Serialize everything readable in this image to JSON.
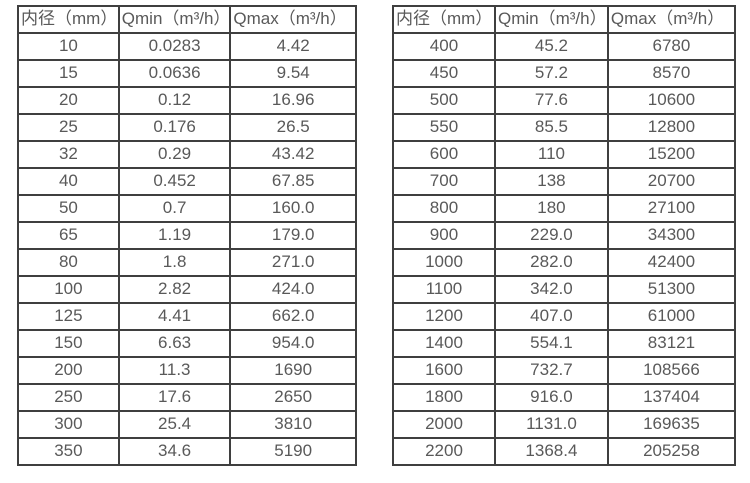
{
  "page": {
    "background_color": "#ffffff",
    "text_color": "#595959",
    "border_color": "#3f3f3f"
  },
  "tables": [
    {
      "name": "flow-rate-table-small-diameters",
      "headers": [
        "内径（mm）",
        "Qmin（m³/h）",
        "Qmax（m³/h）"
      ],
      "rows": [
        [
          "10",
          "0.0283",
          "4.42"
        ],
        [
          "15",
          "0.0636",
          "9.54"
        ],
        [
          "20",
          "0.12",
          "16.96"
        ],
        [
          "25",
          "0.176",
          "26.5"
        ],
        [
          "32",
          "0.29",
          "43.42"
        ],
        [
          "40",
          "0.452",
          "67.85"
        ],
        [
          "50",
          "0.7",
          "160.0"
        ],
        [
          "65",
          "1.19",
          "179.0"
        ],
        [
          "80",
          "1.8",
          "271.0"
        ],
        [
          "100",
          "2.82",
          "424.0"
        ],
        [
          "125",
          "4.41",
          "662.0"
        ],
        [
          "150",
          "6.63",
          "954.0"
        ],
        [
          "200",
          "11.3",
          "1690"
        ],
        [
          "250",
          "17.6",
          "2650"
        ],
        [
          "300",
          "25.4",
          "3810"
        ],
        [
          "350",
          "34.6",
          "5190"
        ]
      ]
    },
    {
      "name": "flow-rate-table-large-diameters",
      "headers": [
        "内径（mm）",
        "Qmin（m³/h）",
        "Qmax（m³/h）"
      ],
      "rows": [
        [
          "400",
          "45.2",
          "6780"
        ],
        [
          "450",
          "57.2",
          "8570"
        ],
        [
          "500",
          "77.6",
          "10600"
        ],
        [
          "550",
          "85.5",
          "12800"
        ],
        [
          "600",
          "110",
          "15200"
        ],
        [
          "700",
          "138",
          "20700"
        ],
        [
          "800",
          "180",
          "27100"
        ],
        [
          "900",
          "229.0",
          "34300"
        ],
        [
          "1000",
          "282.0",
          "42400"
        ],
        [
          "1100",
          "342.0",
          "51300"
        ],
        [
          "1200",
          "407.0",
          "61000"
        ],
        [
          "1400",
          "554.1",
          "83121"
        ],
        [
          "1600",
          "732.7",
          "108566"
        ],
        [
          "1800",
          "916.0",
          "137404"
        ],
        [
          "2000",
          "1131.0",
          "169635"
        ],
        [
          "2200",
          "1368.4",
          "205258"
        ]
      ]
    }
  ]
}
